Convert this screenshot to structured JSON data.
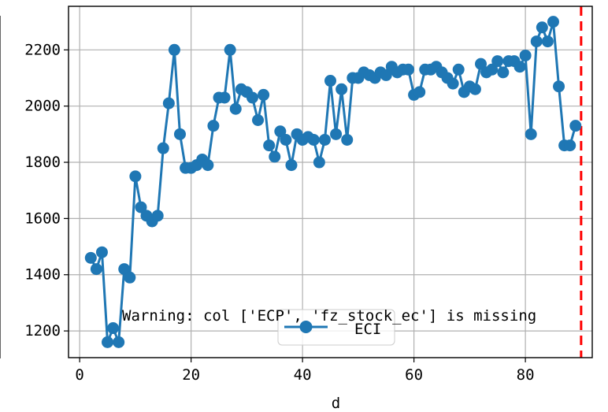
{
  "chart_data": {
    "type": "line",
    "title": "",
    "xlabel": "d",
    "ylabel": "",
    "xlim": [
      -2,
      92
    ],
    "ylim": [
      1105,
      2355
    ],
    "xticks": [
      0,
      20,
      40,
      60,
      80
    ],
    "yticks": [
      1200,
      1400,
      1600,
      1800,
      2000,
      2200
    ],
    "xtick_labels": [
      "0",
      "20",
      "40",
      "60",
      "80"
    ],
    "ytick_labels": [
      "1200",
      "1400",
      "1600",
      "1800",
      "2000",
      "2200"
    ],
    "grid": true,
    "legend_position": "lower-center",
    "colors": {
      "series": "#1f77b4",
      "vline": "#ff0000",
      "grid": "#b0b0b0"
    },
    "series": [
      {
        "name": "ECI",
        "marker": "circle",
        "x": [
          2,
          3,
          4,
          5,
          6,
          7,
          8,
          9,
          10,
          11,
          12,
          13,
          14,
          15,
          16,
          17,
          18,
          19,
          20,
          21,
          22,
          23,
          24,
          25,
          26,
          27,
          28,
          29,
          30,
          31,
          32,
          33,
          34,
          35,
          36,
          37,
          38,
          39,
          40,
          41,
          42,
          43,
          44,
          45,
          46,
          47,
          48,
          49,
          50,
          51,
          52,
          53,
          54,
          55,
          56,
          57,
          58,
          59,
          60,
          61,
          62,
          63,
          64,
          65,
          66,
          67,
          68,
          69,
          70,
          71,
          72,
          73,
          74,
          75,
          76,
          77,
          78,
          79,
          80,
          81,
          82,
          83,
          84,
          85,
          86,
          87,
          88,
          89
        ],
        "values": [
          1460,
          1420,
          1480,
          1160,
          1210,
          1160,
          1420,
          1390,
          1750,
          1640,
          1610,
          1590,
          1610,
          1850,
          2010,
          2200,
          1900,
          1780,
          1780,
          1790,
          1810,
          1790,
          1930,
          2030,
          2030,
          2200,
          1990,
          2060,
          2050,
          2030,
          1950,
          2040,
          1860,
          1820,
          1910,
          1880,
          1790,
          1900,
          1880,
          1890,
          1880,
          1800,
          1880,
          2090,
          1900,
          2060,
          1880,
          2100,
          2100,
          2120,
          2110,
          2100,
          2120,
          2110,
          2140,
          2120,
          2130,
          2130,
          2040,
          2050,
          2130,
          2130,
          2140,
          2120,
          2100,
          2080,
          2130,
          2050,
          2070,
          2060,
          2150,
          2120,
          2130,
          2160,
          2120,
          2160,
          2160,
          2140,
          2180,
          1900,
          2230,
          2280,
          2230,
          2300,
          2070,
          1860,
          1860,
          1930
        ]
      }
    ],
    "vline": {
      "x": 90,
      "style": "dashed"
    },
    "annotation": "Warning: col ['ECP', 'fz_stock_ec'] is missing"
  }
}
